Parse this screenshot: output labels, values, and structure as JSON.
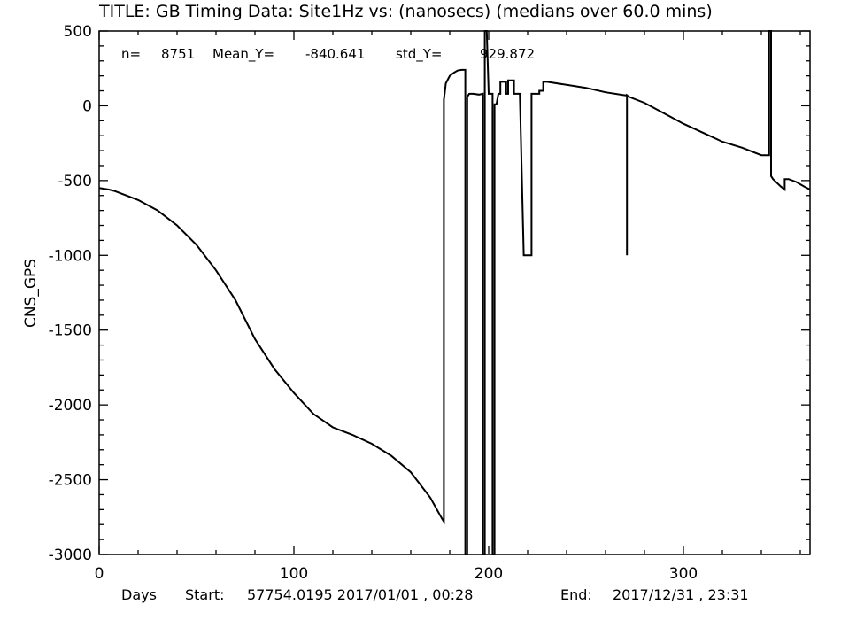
{
  "chart_data": {
    "type": "line",
    "title": "TITLE: GB Timing Data: Site1Hz vs: (nanosecs) (medians over 60.0 mins)",
    "xlabel": "Days",
    "ylabel": "CNS_GPS",
    "xlim": [
      0,
      365
    ],
    "ylim": [
      -3000,
      500
    ],
    "xticks": [
      0,
      100,
      200,
      300
    ],
    "xtick_labels": [
      "0",
      "100",
      "200",
      "300"
    ],
    "yticks": [
      500,
      0,
      -500,
      -1000,
      -1500,
      -2000,
      -2500,
      -3000
    ],
    "ytick_labels": [
      "500",
      "0",
      "-500",
      "-1000",
      "-1500",
      "-2000",
      "-2500",
      "-3000"
    ],
    "grid": false,
    "stats": {
      "n_label": "n=",
      "n": "8751",
      "mean_label": "Mean_Y=",
      "mean": "-840.641",
      "std_label": "std_Y=",
      "std": "929.872"
    },
    "footer": {
      "start_label": "Start:",
      "start": "57754.0195 2017/01/01 , 00:28",
      "end_label": "End:",
      "end": "2017/12/31 , 23:31"
    },
    "series": [
      {
        "x": [
          0,
          5,
          8,
          12,
          20,
          30,
          40,
          50,
          60,
          70,
          80,
          90,
          100,
          110,
          120,
          130,
          140,
          150,
          160,
          170,
          176,
          177,
          177,
          178,
          180,
          182,
          184,
          186,
          188,
          188,
          188.5,
          189,
          189,
          190,
          192,
          195,
          197,
          197,
          198,
          198,
          199,
          200,
          201,
          202,
          202,
          203,
          203,
          204,
          205,
          206,
          206,
          207,
          209,
          209,
          210,
          210,
          211,
          213,
          213,
          214,
          216,
          218,
          220,
          222,
          222,
          223,
          226,
          226,
          228,
          228,
          230,
          240,
          250,
          260,
          270,
          271,
          271,
          271,
          271,
          272,
          280,
          290,
          300,
          310,
          320,
          330,
          340,
          344,
          344,
          344.5,
          345,
          345,
          346,
          350,
          352,
          352,
          354,
          358,
          362,
          365
        ],
        "y": [
          -550,
          -560,
          -570,
          -590,
          -630,
          -700,
          -800,
          -930,
          -1100,
          -1300,
          -1560,
          -1760,
          -1920,
          -2060,
          -2150,
          -2200,
          -2260,
          -2340,
          -2450,
          -2620,
          -2760,
          -2780,
          40,
          150,
          200,
          220,
          235,
          240,
          240,
          -3000,
          -3000,
          -3000,
          60,
          80,
          80,
          75,
          80,
          -3000,
          -3000,
          500,
          500,
          80,
          80,
          80,
          -3000,
          -3000,
          10,
          10,
          80,
          80,
          160,
          160,
          160,
          80,
          80,
          170,
          170,
          170,
          80,
          80,
          80,
          -1000,
          -1000,
          -1000,
          80,
          80,
          80,
          100,
          100,
          160,
          160,
          140,
          120,
          90,
          70,
          70,
          -1000,
          -1000,
          70,
          60,
          20,
          -50,
          -120,
          -180,
          -240,
          -280,
          -330,
          -330,
          500,
          500,
          500,
          -470,
          -490,
          -540,
          -560,
          -490,
          -490,
          -510,
          -540,
          -560
        ]
      }
    ]
  }
}
